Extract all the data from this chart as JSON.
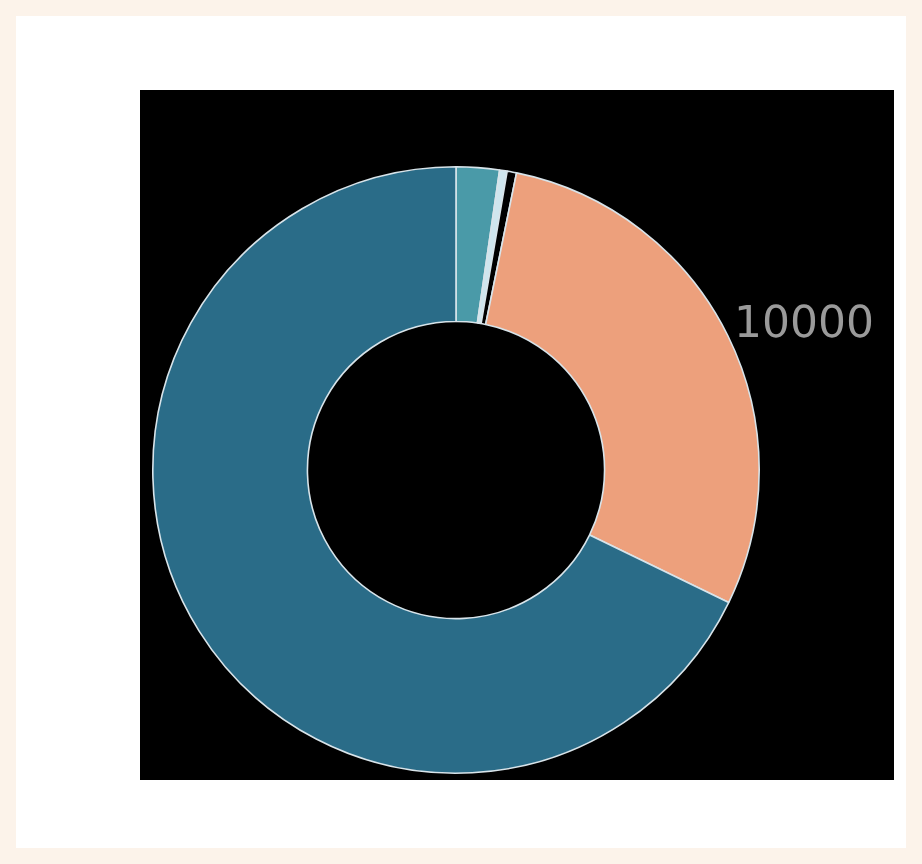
{
  "chart_data": {
    "type": "donut",
    "categories": [
      null,
      null,
      null,
      null,
      null
    ],
    "values": [
      2.3,
      0.4,
      0.5,
      29.0,
      67.8
    ],
    "colors": [
      "#4a9aa8",
      "#cfe6ee",
      "#000000",
      "#eda07c",
      "#2a6c88"
    ],
    "annotations": [
      "10000"
    ],
    "legend": false
  }
}
